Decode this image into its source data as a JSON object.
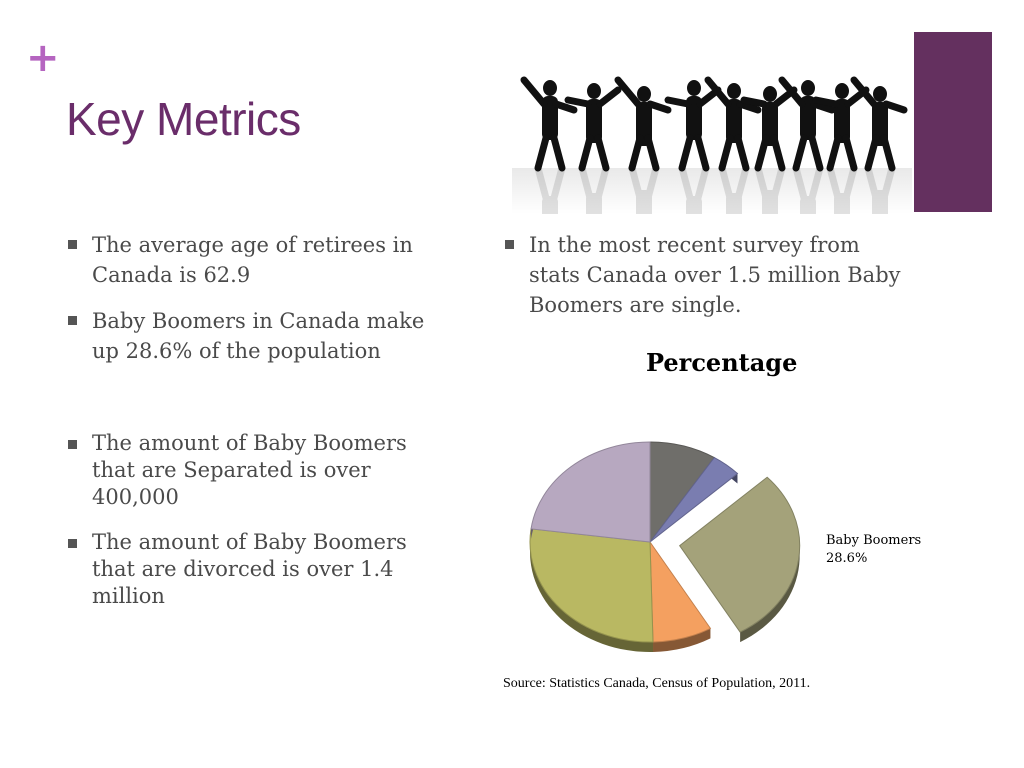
{
  "slide": {
    "plus_glyph": "+",
    "title": "Key Metrics",
    "accent_color": "#64305f",
    "title_color": "#6a2d6a"
  },
  "image": {
    "icon": "dancing-silhouettes"
  },
  "bullets_left": [
    {
      "text": "The average age of retirees in Canada is 62.9"
    },
    {
      "text": "Baby Boomers in Canada make up 28.6% of the population"
    },
    {
      "text": "The amount of Baby Boomers that are Separated is over 400,000"
    },
    {
      "text": "The amount of Baby Boomers that are divorced is over 1.4 million"
    }
  ],
  "bullets_right": [
    {
      "text": "In the most recent survey from stats Canada over 1.5 million Baby Boomers are single."
    }
  ],
  "chart_data": {
    "type": "pie",
    "title": "Percentage",
    "slices": [
      {
        "value": 9.0,
        "color": "#6f6e6a",
        "exploded": false
      },
      {
        "value": 4.0,
        "color": "#7a7db0",
        "exploded": false
      },
      {
        "label": "Baby Boomers",
        "value": 28.6,
        "value_label": "28.6%",
        "color": "#a4a27a",
        "exploded": true
      },
      {
        "value": 8.0,
        "color": "#f4a060",
        "exploded": false
      },
      {
        "value": 27.5,
        "color": "#b9b862",
        "exploded": false
      },
      {
        "value": 22.9,
        "color": "#b7a8c0",
        "exploded": false
      }
    ],
    "source": "Source: Statistics Canada, Census of Population, 2011."
  }
}
